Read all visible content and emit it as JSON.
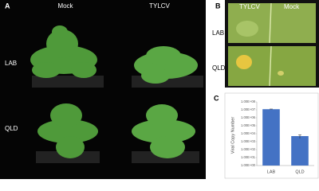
{
  "panels": {
    "a": {
      "letter": "A",
      "columns": [
        "Mock",
        "TYLCV"
      ],
      "rows": [
        "LAB",
        "QLD"
      ]
    },
    "b": {
      "letter": "B",
      "columns": [
        "TYLCV",
        "Mock"
      ],
      "rows": [
        "LAB",
        "QLD"
      ]
    },
    "c": {
      "letter": "C"
    }
  },
  "chart_data": {
    "type": "bar",
    "ylabel": "Viral Copy Number",
    "categories": [
      "LAB",
      "QLD"
    ],
    "values": [
      12000000,
      5000
    ],
    "errors": [
      600000,
      2500
    ],
    "color": "#4472c4",
    "log_scale": true,
    "ylim": [
      1,
      100000000
    ],
    "yticks": [
      {
        "value": 1,
        "label": "1.00E+00"
      },
      {
        "value": 10,
        "label": "1.00E+01"
      },
      {
        "value": 100,
        "label": "1.00E+02"
      },
      {
        "value": 1000,
        "label": "1.00E+03"
      },
      {
        "value": 10000,
        "label": "1.00E+04"
      },
      {
        "value": 100000,
        "label": "1.00E+05"
      },
      {
        "value": 1000000,
        "label": "1.00E+06"
      },
      {
        "value": 10000000,
        "label": "1.00E+07"
      },
      {
        "value": 100000000,
        "label": "1.00E+08"
      }
    ]
  }
}
